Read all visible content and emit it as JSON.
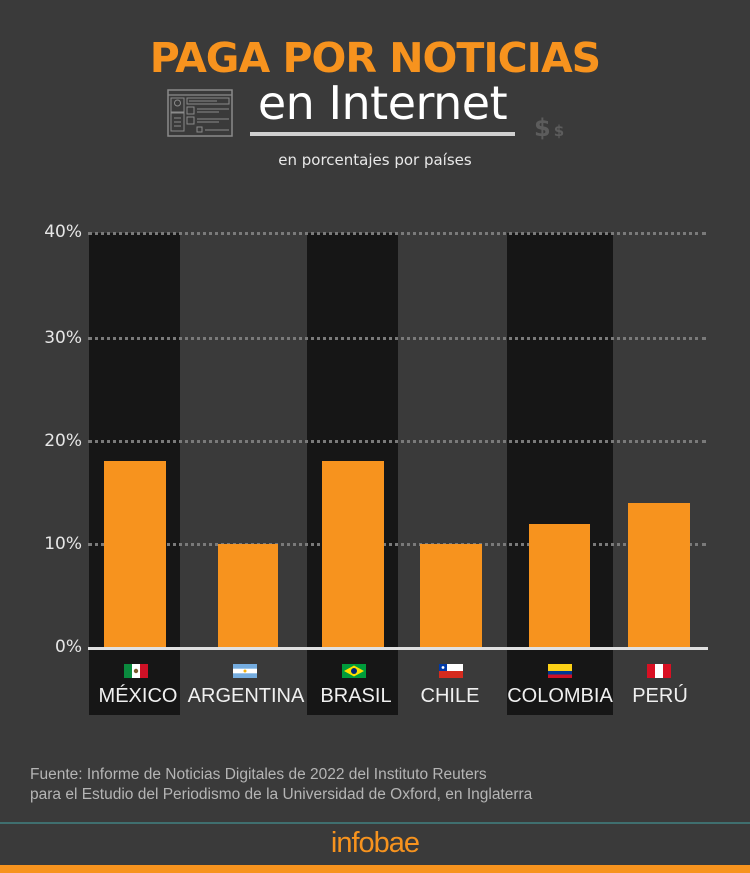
{
  "header": {
    "title": "PAGA POR NOTICIAS",
    "title_line2": "en Internet",
    "subtitle": "en porcentajes por países",
    "icons": [
      "browser-window-icon",
      "dollar-sign-icon"
    ],
    "dollar_big": "$",
    "dollar_small": "$"
  },
  "colors": {
    "background": "#3a3a3a",
    "accent": "#f7931e",
    "column_highlight": "#161616",
    "gridline": "#7a7a7a"
  },
  "axis": {
    "y_ticks": [
      "40%",
      "30%",
      "20%",
      "10%",
      "0%"
    ]
  },
  "countries": [
    {
      "name": "MÉXICO",
      "flag": "mexico-flag-icon",
      "value": 18
    },
    {
      "name": "ARGENTINA",
      "flag": "argentina-flag-icon",
      "value": 10
    },
    {
      "name": "BRASIL",
      "flag": "brazil-flag-icon",
      "value": 18
    },
    {
      "name": "CHILE",
      "flag": "chile-flag-icon",
      "value": 10
    },
    {
      "name": "COLOMBIA",
      "flag": "colombia-flag-icon",
      "value": 12
    },
    {
      "name": "PERÚ",
      "flag": "peru-flag-icon",
      "value": 14
    }
  ],
  "chart_data": {
    "type": "bar",
    "title": "PAGA POR NOTICIAS en Internet",
    "subtitle": "en porcentajes por países",
    "categories": [
      "MÉXICO",
      "ARGENTINA",
      "BRASIL",
      "CHILE",
      "COLOMBIA",
      "PERÚ"
    ],
    "values": [
      18,
      10,
      18,
      10,
      12,
      14
    ],
    "xlabel": "",
    "ylabel": "",
    "y_ticks": [
      0,
      10,
      20,
      30,
      40
    ],
    "y_tick_labels": [
      "0%",
      "10%",
      "20%",
      "30%",
      "40%"
    ],
    "ylim": [
      0,
      40
    ],
    "grid": "horizontal dotted",
    "legend": null,
    "unit": "%"
  },
  "footer": {
    "source_line1": "Fuente: Informe de Noticias Digitales de 2022 del Instituto Reuters",
    "source_line2": "para el Estudio del Periodismo de la Universidad de Oxford, en Inglaterra",
    "logo": "infobae"
  }
}
